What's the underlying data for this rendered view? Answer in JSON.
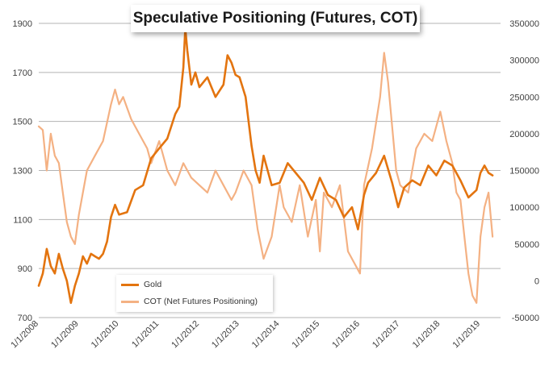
{
  "chart_data": {
    "type": "line",
    "title": "Speculative Positioning (Futures, COT)",
    "colors": {
      "gold": "#E3740F",
      "cot": "#F4B183",
      "grid": "#B3B3B3",
      "axis_text": "#404040"
    },
    "left_axis": {
      "min": 700,
      "max": 1900,
      "ticks": [
        "700",
        "900",
        "1100",
        "1300",
        "1500",
        "1700",
        "1900"
      ]
    },
    "right_axis": {
      "min": -50000,
      "max": 350000,
      "ticks": [
        "-50000",
        "0",
        "50000",
        "100000",
        "150000",
        "200000",
        "250000",
        "300000",
        "350000"
      ]
    },
    "x_axis": {
      "start": 2008.0,
      "end": 2019.5,
      "ticks": [
        "1/1/2008",
        "1/1/2009",
        "1/1/2010",
        "1/1/2011",
        "1/1/2012",
        "1/1/2013",
        "1/1/2014",
        "1/1/2015",
        "1/1/2016",
        "1/1/2017",
        "1/1/2018",
        "1/1/2019"
      ]
    },
    "legend": {
      "position": "bottom-left"
    },
    "series": [
      {
        "name": "Gold",
        "axis": "left",
        "x": [
          2008.0,
          2008.1,
          2008.2,
          2008.3,
          2008.4,
          2008.5,
          2008.6,
          2008.7,
          2008.8,
          2008.9,
          2009.0,
          2009.1,
          2009.2,
          2009.3,
          2009.4,
          2009.5,
          2009.6,
          2009.7,
          2009.8,
          2009.9,
          2010.0,
          2010.2,
          2010.4,
          2010.6,
          2010.8,
          2011.0,
          2011.2,
          2011.4,
          2011.5,
          2011.6,
          2011.65,
          2011.7,
          2011.8,
          2011.9,
          2012.0,
          2012.2,
          2012.4,
          2012.6,
          2012.7,
          2012.8,
          2012.9,
          2013.0,
          2013.15,
          2013.3,
          2013.4,
          2013.5,
          2013.6,
          2013.8,
          2014.0,
          2014.2,
          2014.4,
          2014.6,
          2014.8,
          2015.0,
          2015.2,
          2015.4,
          2015.6,
          2015.8,
          2015.95,
          2016.1,
          2016.2,
          2016.4,
          2016.6,
          2016.8,
          2016.95,
          2017.1,
          2017.3,
          2017.5,
          2017.7,
          2017.9,
          2018.1,
          2018.3,
          2018.5,
          2018.7,
          2018.9,
          2019.0,
          2019.1,
          2019.2,
          2019.3
        ],
        "values": [
          830,
          880,
          980,
          910,
          880,
          960,
          900,
          850,
          760,
          830,
          880,
          950,
          920,
          960,
          950,
          940,
          960,
          1010,
          1110,
          1160,
          1120,
          1130,
          1220,
          1240,
          1350,
          1390,
          1430,
          1530,
          1560,
          1720,
          1880,
          1790,
          1650,
          1700,
          1640,
          1680,
          1600,
          1650,
          1770,
          1740,
          1690,
          1680,
          1600,
          1400,
          1300,
          1250,
          1360,
          1240,
          1250,
          1330,
          1290,
          1250,
          1180,
          1270,
          1200,
          1180,
          1110,
          1150,
          1060,
          1200,
          1250,
          1290,
          1360,
          1250,
          1150,
          1230,
          1260,
          1240,
          1320,
          1280,
          1340,
          1320,
          1260,
          1190,
          1220,
          1290,
          1320,
          1290,
          1280
        ]
      },
      {
        "name": "COT (Net Futures Positioning)",
        "axis": "right",
        "x": [
          2008.0,
          2008.1,
          2008.2,
          2008.3,
          2008.4,
          2008.5,
          2008.6,
          2008.7,
          2008.8,
          2008.9,
          2009.0,
          2009.2,
          2009.4,
          2009.6,
          2009.8,
          2009.9,
          2010.0,
          2010.1,
          2010.3,
          2010.5,
          2010.7,
          2010.8,
          2011.0,
          2011.2,
          2011.4,
          2011.6,
          2011.8,
          2012.0,
          2012.2,
          2012.4,
          2012.6,
          2012.8,
          2012.9,
          2013.1,
          2013.3,
          2013.45,
          2013.6,
          2013.8,
          2014.0,
          2014.1,
          2014.3,
          2014.5,
          2014.7,
          2014.9,
          2015.0,
          2015.1,
          2015.3,
          2015.5,
          2015.7,
          2015.9,
          2016.0,
          2016.1,
          2016.3,
          2016.5,
          2016.6,
          2016.7,
          2016.9,
          2017.0,
          2017.2,
          2017.4,
          2017.6,
          2017.8,
          2018.0,
          2018.15,
          2018.3,
          2018.4,
          2018.5,
          2018.6,
          2018.7,
          2018.8,
          2018.9,
          2019.0,
          2019.1,
          2019.2,
          2019.3
        ],
        "values": [
          210000,
          205000,
          150000,
          200000,
          170000,
          160000,
          120000,
          80000,
          60000,
          50000,
          90000,
          150000,
          170000,
          190000,
          240000,
          260000,
          240000,
          250000,
          220000,
          200000,
          180000,
          160000,
          190000,
          150000,
          130000,
          160000,
          140000,
          130000,
          120000,
          150000,
          130000,
          110000,
          120000,
          150000,
          130000,
          70000,
          30000,
          60000,
          130000,
          100000,
          80000,
          130000,
          60000,
          110000,
          40000,
          120000,
          100000,
          130000,
          40000,
          20000,
          10000,
          130000,
          180000,
          250000,
          310000,
          270000,
          150000,
          130000,
          120000,
          180000,
          200000,
          190000,
          230000,
          190000,
          160000,
          120000,
          110000,
          60000,
          10000,
          -20000,
          -30000,
          60000,
          100000,
          120000,
          60000
        ]
      }
    ]
  }
}
